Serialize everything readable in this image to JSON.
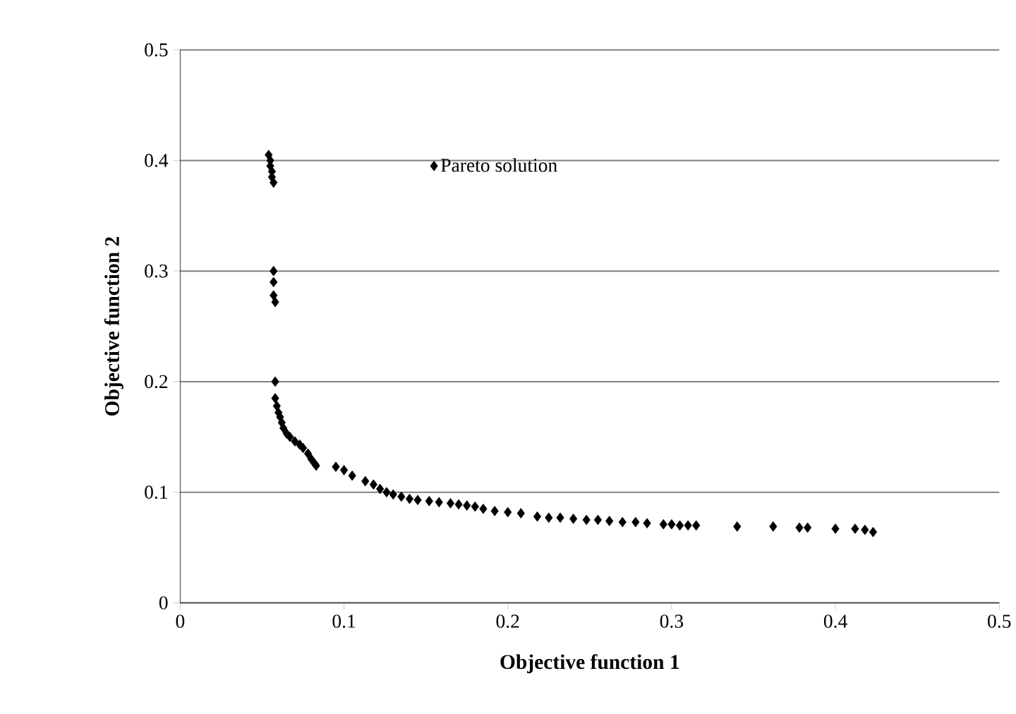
{
  "chart_data": {
    "type": "scatter",
    "xlabel": "Objective function 1",
    "ylabel": "Objective function 2",
    "series": [
      {
        "name": "Pareto solution",
        "color": "#000000",
        "x": [
          0.054,
          0.055,
          0.055,
          0.056,
          0.056,
          0.057,
          0.057,
          0.057,
          0.057,
          0.058,
          0.058,
          0.058,
          0.059,
          0.06,
          0.061,
          0.062,
          0.063,
          0.065,
          0.067,
          0.07,
          0.073,
          0.075,
          0.078,
          0.08,
          0.082,
          0.083,
          0.095,
          0.1,
          0.105,
          0.113,
          0.118,
          0.122,
          0.126,
          0.13,
          0.135,
          0.14,
          0.145,
          0.152,
          0.158,
          0.165,
          0.17,
          0.175,
          0.18,
          0.185,
          0.192,
          0.2,
          0.208,
          0.218,
          0.225,
          0.232,
          0.24,
          0.248,
          0.255,
          0.262,
          0.27,
          0.278,
          0.285,
          0.295,
          0.3,
          0.305,
          0.31,
          0.315,
          0.34,
          0.362,
          0.378,
          0.383,
          0.4,
          0.412,
          0.418,
          0.423
        ],
        "values": [
          0.405,
          0.4,
          0.395,
          0.39,
          0.385,
          0.38,
          0.3,
          0.29,
          0.278,
          0.272,
          0.2,
          0.185,
          0.178,
          0.172,
          0.168,
          0.163,
          0.158,
          0.153,
          0.15,
          0.146,
          0.143,
          0.14,
          0.135,
          0.13,
          0.126,
          0.124,
          0.123,
          0.12,
          0.115,
          0.11,
          0.107,
          0.103,
          0.1,
          0.098,
          0.096,
          0.094,
          0.093,
          0.092,
          0.091,
          0.09,
          0.089,
          0.088,
          0.087,
          0.085,
          0.083,
          0.082,
          0.081,
          0.078,
          0.077,
          0.077,
          0.076,
          0.075,
          0.075,
          0.074,
          0.073,
          0.073,
          0.072,
          0.071,
          0.071,
          0.07,
          0.07,
          0.07,
          0.069,
          0.069,
          0.068,
          0.068,
          0.067,
          0.067,
          0.066,
          0.064
        ]
      }
    ],
    "xlim": [
      0,
      0.5
    ],
    "ylim": [
      0,
      0.5
    ],
    "xticks": [
      0,
      0.1,
      0.2,
      0.3,
      0.4,
      0.5
    ],
    "yticks": [
      0,
      0.1,
      0.2,
      0.3,
      0.4,
      0.5
    ],
    "grid": "y",
    "legend": "top left",
    "marker": "diamond"
  }
}
